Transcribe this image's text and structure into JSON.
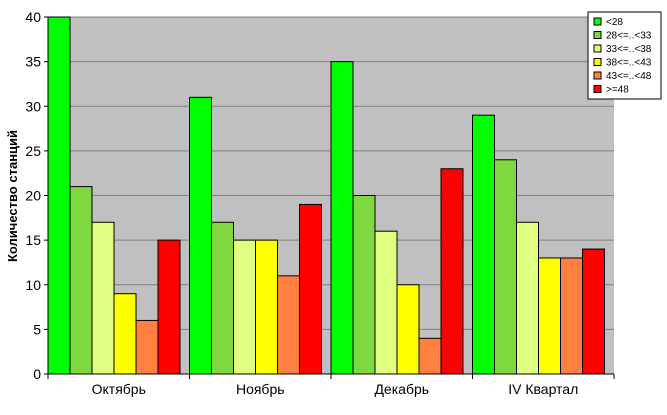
{
  "chart_data": {
    "type": "bar",
    "title": "",
    "xlabel": "",
    "ylabel": "Количество станций",
    "ylim": [
      0,
      40
    ],
    "yticks": [
      0,
      5,
      10,
      15,
      20,
      25,
      30,
      35,
      40
    ],
    "grid": true,
    "legend_position": "top-right",
    "categories": [
      "Октябрь",
      "Ноябрь",
      "Декабрь",
      "IV Квартал"
    ],
    "series": [
      {
        "name": "<28",
        "color": "#00ff00",
        "values": [
          40,
          31,
          35,
          29
        ]
      },
      {
        "name": "28<=..<33",
        "color": "#80d840",
        "values": [
          21,
          17,
          20,
          24
        ]
      },
      {
        "name": "33<=..<38",
        "color": "#e0ff80",
        "values": [
          17,
          15,
          16,
          17
        ]
      },
      {
        "name": "38<=..<43",
        "color": "#ffff00",
        "values": [
          9,
          15,
          10,
          13
        ]
      },
      {
        "name": "43<=..<48",
        "color": "#ff8040",
        "values": [
          6,
          11,
          4,
          13
        ]
      },
      {
        "name": ">=48",
        "color": "#ff0000",
        "values": [
          15,
          19,
          23,
          14
        ]
      }
    ],
    "colors": {
      "plot_background": "#c0c0c0",
      "grid": "#808080"
    }
  }
}
